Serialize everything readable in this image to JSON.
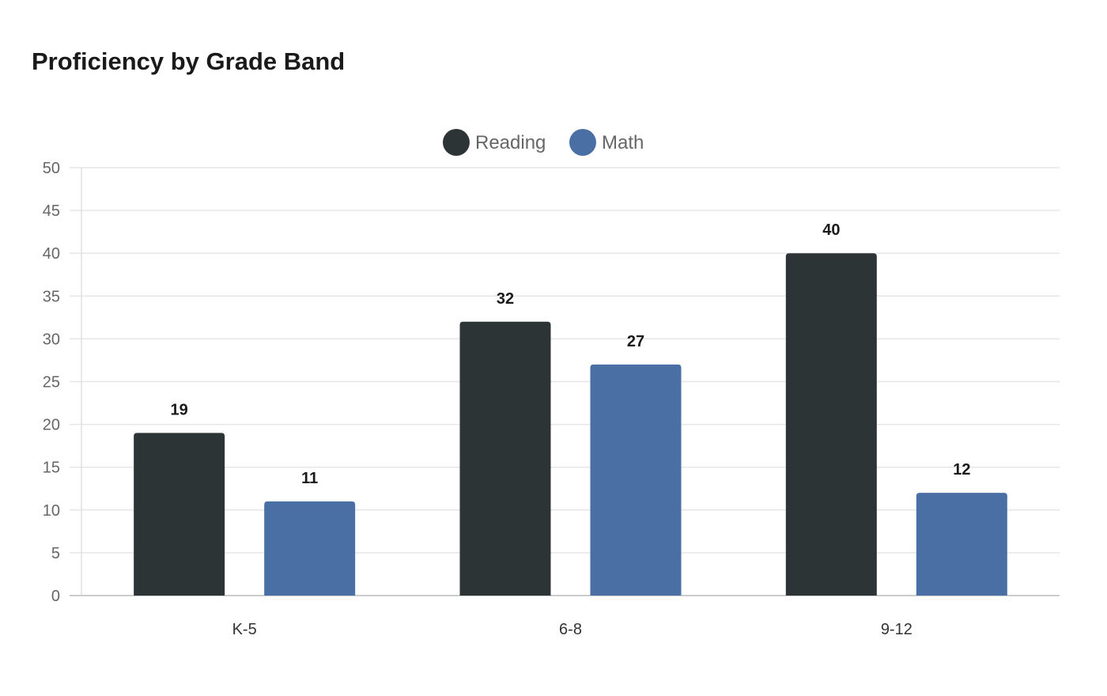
{
  "chart_data": {
    "type": "bar",
    "title": "Proficiency by Grade Band",
    "xlabel": "",
    "ylabel": "",
    "categories": [
      "K-5",
      "6-8",
      "9-12"
    ],
    "series": [
      {
        "name": "Reading",
        "color": "#2d3436",
        "values": [
          19,
          32,
          40
        ]
      },
      {
        "name": "Math",
        "color": "#4a6fa5",
        "values": [
          11,
          27,
          12
        ]
      }
    ],
    "ylim": [
      0,
      50
    ],
    "yticks": [
      0,
      5,
      10,
      15,
      20,
      25,
      30,
      35,
      40,
      45,
      50
    ],
    "grid": true,
    "legend": "top-center",
    "data_labels": true
  }
}
